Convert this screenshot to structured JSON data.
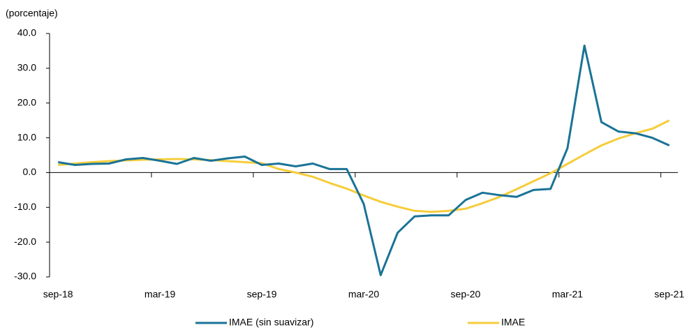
{
  "chart_data": {
    "type": "line",
    "y_label": "(porcentaje)",
    "categories": [
      "sep-18",
      null,
      null,
      null,
      null,
      null,
      "mar-19",
      null,
      null,
      null,
      null,
      null,
      "sep-19",
      null,
      null,
      null,
      null,
      null,
      "mar-20",
      null,
      null,
      null,
      null,
      null,
      "sep-20",
      null,
      null,
      null,
      null,
      null,
      "mar-21",
      null,
      null,
      null,
      null,
      null,
      "sep-21"
    ],
    "series": [
      {
        "name": "IMAE (sin suavizar)",
        "color": "#1a7396",
        "values": [
          3.0,
          2.2,
          2.5,
          2.6,
          3.8,
          4.2,
          3.4,
          2.5,
          4.2,
          3.4,
          4.1,
          4.6,
          2.2,
          2.6,
          1.8,
          2.6,
          1.0,
          1.0,
          -9.0,
          -29.5,
          -17.3,
          -12.6,
          -12.3,
          -12.3,
          -7.9,
          -5.8,
          -6.5,
          -7.0,
          -5.0,
          -4.7,
          7.0,
          36.5,
          14.5,
          11.8,
          11.3,
          10.0,
          7.8
        ]
      },
      {
        "name": "IMAE",
        "color": "#f5cd3b",
        "values": [
          2.2,
          2.6,
          3.0,
          3.3,
          3.5,
          3.7,
          3.8,
          3.9,
          3.8,
          3.6,
          3.3,
          3.0,
          2.7,
          1.0,
          0.0,
          -1.2,
          -3.0,
          -4.6,
          -6.6,
          -8.4,
          -9.8,
          -11.0,
          -11.3,
          -11.0,
          -10.4,
          -8.8,
          -7.0,
          -4.8,
          -2.5,
          -0.2,
          2.5,
          5.2,
          7.8,
          9.8,
          11.3,
          12.6,
          15.0
        ]
      }
    ],
    "ylim": [
      -30,
      40
    ],
    "yticks": [
      {
        "value": 40,
        "label": "40.0"
      },
      {
        "value": 30,
        "label": "30.0"
      },
      {
        "value": 20,
        "label": "20.0"
      },
      {
        "value": 10,
        "label": "10.0"
      },
      {
        "value": 0,
        "label": "0.0"
      },
      {
        "value": -10,
        "label": "-10.0"
      },
      {
        "value": -20,
        "label": "-20.0"
      },
      {
        "value": -30,
        "label": "-30.0"
      }
    ],
    "grid": false,
    "legend": "bottom"
  }
}
